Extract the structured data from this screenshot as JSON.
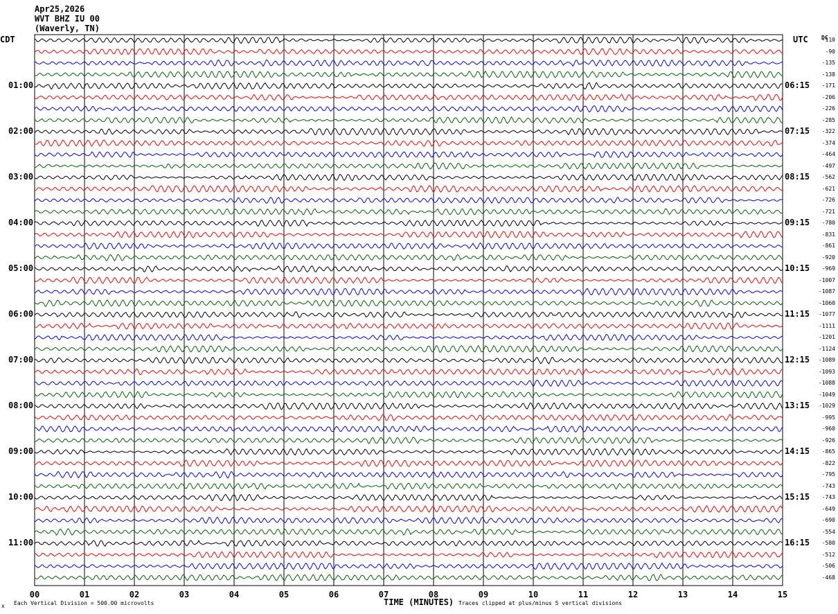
{
  "header": {
    "date": "Apr25,2026",
    "station": "WVT BHZ IU 00",
    "location": "(Waverly, TN)"
  },
  "left_timezone": "CDT",
  "right_timezone": "UTC",
  "dc_label": "DC",
  "chart_data": {
    "type": "line",
    "title": "WVT BHZ IU 00",
    "xlabel": "TIME (MINUTES)",
    "x_ticks": [
      "00",
      "01",
      "02",
      "03",
      "04",
      "05",
      "06",
      "07",
      "08",
      "09",
      "10",
      "11",
      "12",
      "13",
      "14",
      "15"
    ],
    "xlim": [
      0,
      15
    ],
    "trace_count": 48,
    "trace_colors": [
      "#000000",
      "#ff0000",
      "#0000ff",
      "#006400"
    ],
    "left_hour_labels": [
      "01:00",
      "02:00",
      "03:00",
      "04:00",
      "05:00",
      "06:00",
      "07:00",
      "08:00",
      "09:00",
      "10:00",
      "11:00"
    ],
    "right_hour_labels": [
      "06:15",
      "07:15",
      "08:15",
      "09:15",
      "10:15",
      "11:15",
      "12:15",
      "13:15",
      "14:15",
      "15:15",
      "16:15"
    ],
    "dc_offsets": [
      "-110",
      "-90",
      "-135",
      "-138",
      "-171",
      "-206",
      "-226",
      "-285",
      "-322",
      "-374",
      "-464",
      "-497",
      "-562",
      "-621",
      "-726",
      "-721",
      "-780",
      "-831",
      "-861",
      "-920",
      "-969",
      "-1007",
      "-1087",
      "-1060",
      "-1077",
      "-1111",
      "-1201",
      "-1124",
      "-1089",
      "-1093",
      "-1088",
      "-1049",
      "-1029",
      "-995",
      "-960",
      "-926",
      "-865",
      "-822",
      "-795",
      "-743",
      "-743",
      "-649",
      "-690",
      "-554",
      "-580",
      "-512",
      "-506",
      "-468"
    ],
    "vertical_division": "500.00 microvolts",
    "clip_note": "Traces clipped at plus/minus 5 vertical divisions"
  },
  "footer": {
    "vertical_division": "Each Vertical Division =  500.00 microvolts",
    "clip_note": "Traces clipped at plus/minus 5 vertical divisions",
    "corner_mark": "x"
  }
}
